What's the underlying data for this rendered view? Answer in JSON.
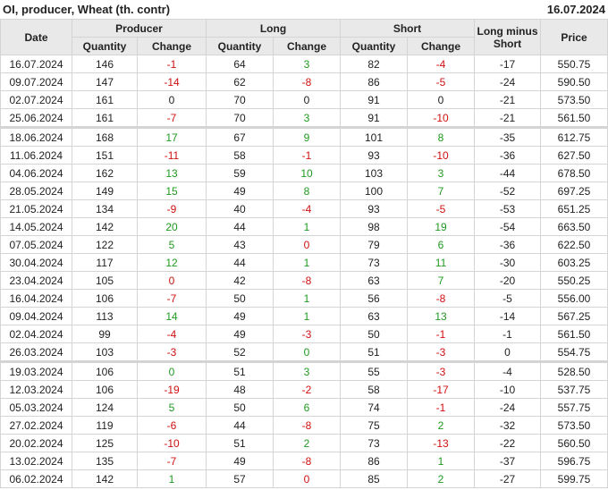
{
  "title": "OI, producer, Wheat (th. contr)",
  "date": "16.07.2024",
  "colors": {
    "positive": "#1f9a1f",
    "negative": "#d01010"
  },
  "headers": {
    "date": "Date",
    "producer": "Producer",
    "long": "Long",
    "short": "Short",
    "long_minus_short": "Long minus Short",
    "price": "Price",
    "quantity": "Quantity",
    "change": "Change"
  },
  "rows": [
    {
      "date": "16.07.2024",
      "pq": "146",
      "pc": "-1",
      "pcc": "r",
      "lq": "64",
      "lc": "3",
      "lcc": "g",
      "sq": "82",
      "sc": "-4",
      "scc": "r",
      "lms": "-17",
      "price": "550.75"
    },
    {
      "date": "09.07.2024",
      "pq": "147",
      "pc": "-14",
      "pcc": "r",
      "lq": "62",
      "lc": "-8",
      "lcc": "r",
      "sq": "86",
      "sc": "-5",
      "scc": "r",
      "lms": "-24",
      "price": "590.50"
    },
    {
      "date": "02.07.2024",
      "pq": "161",
      "pc": "0",
      "pcc": "n",
      "lq": "70",
      "lc": "0",
      "lcc": "n",
      "sq": "91",
      "sc": "0",
      "scc": "n",
      "lms": "-21",
      "price": "573.50"
    },
    {
      "date": "25.06.2024",
      "pq": "161",
      "pc": "-7",
      "pcc": "r",
      "lq": "70",
      "lc": "3",
      "lcc": "g",
      "sq": "91",
      "sc": "-10",
      "scc": "r",
      "lms": "-21",
      "price": "561.50"
    },
    {
      "date": "18.06.2024",
      "pq": "168",
      "pc": "17",
      "pcc": "g",
      "lq": "67",
      "lc": "9",
      "lcc": "g",
      "sq": "101",
      "sc": "8",
      "scc": "g",
      "lms": "-35",
      "price": "612.75",
      "sep": true
    },
    {
      "date": "11.06.2024",
      "pq": "151",
      "pc": "-11",
      "pcc": "r",
      "lq": "58",
      "lc": "-1",
      "lcc": "r",
      "sq": "93",
      "sc": "-10",
      "scc": "r",
      "lms": "-36",
      "price": "627.50"
    },
    {
      "date": "04.06.2024",
      "pq": "162",
      "pc": "13",
      "pcc": "g",
      "lq": "59",
      "lc": "10",
      "lcc": "g",
      "sq": "103",
      "sc": "3",
      "scc": "g",
      "lms": "-44",
      "price": "678.50"
    },
    {
      "date": "28.05.2024",
      "pq": "149",
      "pc": "15",
      "pcc": "g",
      "lq": "49",
      "lc": "8",
      "lcc": "g",
      "sq": "100",
      "sc": "7",
      "scc": "g",
      "lms": "-52",
      "price": "697.25"
    },
    {
      "date": "21.05.2024",
      "pq": "134",
      "pc": "-9",
      "pcc": "r",
      "lq": "40",
      "lc": "-4",
      "lcc": "r",
      "sq": "93",
      "sc": "-5",
      "scc": "r",
      "lms": "-53",
      "price": "651.25"
    },
    {
      "date": "14.05.2024",
      "pq": "142",
      "pc": "20",
      "pcc": "g",
      "lq": "44",
      "lc": "1",
      "lcc": "g",
      "sq": "98",
      "sc": "19",
      "scc": "g",
      "lms": "-54",
      "price": "663.50"
    },
    {
      "date": "07.05.2024",
      "pq": "122",
      "pc": "5",
      "pcc": "g",
      "lq": "43",
      "lc": "0",
      "lcc": "r",
      "sq": "79",
      "sc": "6",
      "scc": "g",
      "lms": "-36",
      "price": "622.50"
    },
    {
      "date": "30.04.2024",
      "pq": "117",
      "pc": "12",
      "pcc": "g",
      "lq": "44",
      "lc": "1",
      "lcc": "g",
      "sq": "73",
      "sc": "11",
      "scc": "g",
      "lms": "-30",
      "price": "603.25"
    },
    {
      "date": "23.04.2024",
      "pq": "105",
      "pc": "0",
      "pcc": "r",
      "lq": "42",
      "lc": "-8",
      "lcc": "r",
      "sq": "63",
      "sc": "7",
      "scc": "g",
      "lms": "-20",
      "price": "550.25"
    },
    {
      "date": "16.04.2024",
      "pq": "106",
      "pc": "-7",
      "pcc": "r",
      "lq": "50",
      "lc": "1",
      "lcc": "g",
      "sq": "56",
      "sc": "-8",
      "scc": "r",
      "lms": "-5",
      "price": "556.00"
    },
    {
      "date": "09.04.2024",
      "pq": "113",
      "pc": "14",
      "pcc": "g",
      "lq": "49",
      "lc": "1",
      "lcc": "g",
      "sq": "63",
      "sc": "13",
      "scc": "g",
      "lms": "-14",
      "price": "567.25"
    },
    {
      "date": "02.04.2024",
      "pq": "99",
      "pc": "-4",
      "pcc": "r",
      "lq": "49",
      "lc": "-3",
      "lcc": "r",
      "sq": "50",
      "sc": "-1",
      "scc": "r",
      "lms": "-1",
      "price": "561.50"
    },
    {
      "date": "26.03.2024",
      "pq": "103",
      "pc": "-3",
      "pcc": "r",
      "lq": "52",
      "lc": "0",
      "lcc": "g",
      "sq": "51",
      "sc": "-3",
      "scc": "r",
      "lms": "0",
      "price": "554.75"
    },
    {
      "date": "19.03.2024",
      "pq": "106",
      "pc": "0",
      "pcc": "g",
      "lq": "51",
      "lc": "3",
      "lcc": "g",
      "sq": "55",
      "sc": "-3",
      "scc": "r",
      "lms": "-4",
      "price": "528.50",
      "sep": true
    },
    {
      "date": "12.03.2024",
      "pq": "106",
      "pc": "-19",
      "pcc": "r",
      "lq": "48",
      "lc": "-2",
      "lcc": "r",
      "sq": "58",
      "sc": "-17",
      "scc": "r",
      "lms": "-10",
      "price": "537.75"
    },
    {
      "date": "05.03.2024",
      "pq": "124",
      "pc": "5",
      "pcc": "g",
      "lq": "50",
      "lc": "6",
      "lcc": "g",
      "sq": "74",
      "sc": "-1",
      "scc": "r",
      "lms": "-24",
      "price": "557.75"
    },
    {
      "date": "27.02.2024",
      "pq": "119",
      "pc": "-6",
      "pcc": "r",
      "lq": "44",
      "lc": "-8",
      "lcc": "r",
      "sq": "75",
      "sc": "2",
      "scc": "g",
      "lms": "-32",
      "price": "573.50"
    },
    {
      "date": "20.02.2024",
      "pq": "125",
      "pc": "-10",
      "pcc": "r",
      "lq": "51",
      "lc": "2",
      "lcc": "g",
      "sq": "73",
      "sc": "-13",
      "scc": "r",
      "lms": "-22",
      "price": "560.50"
    },
    {
      "date": "13.02.2024",
      "pq": "135",
      "pc": "-7",
      "pcc": "r",
      "lq": "49",
      "lc": "-8",
      "lcc": "r",
      "sq": "86",
      "sc": "1",
      "scc": "g",
      "lms": "-37",
      "price": "596.75"
    },
    {
      "date": "06.02.2024",
      "pq": "142",
      "pc": "1",
      "pcc": "g",
      "lq": "57",
      "lc": "0",
      "lcc": "r",
      "sq": "85",
      "sc": "2",
      "scc": "g",
      "lms": "-27",
      "price": "599.75"
    }
  ]
}
